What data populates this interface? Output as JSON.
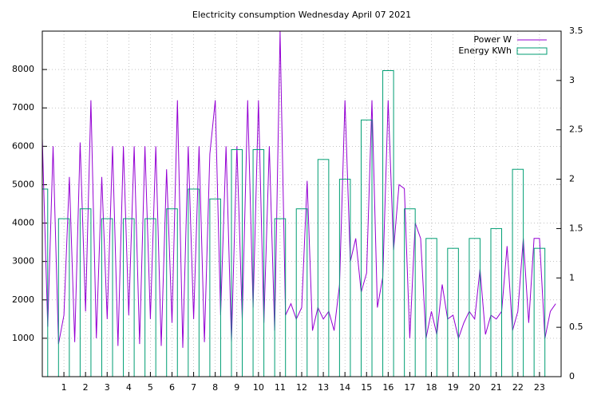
{
  "chart_data": {
    "type": "line",
    "title": "Electricity consumption Wednesday April 07 2021",
    "xlim": [
      0,
      24
    ],
    "xticks": [
      1,
      2,
      3,
      4,
      5,
      6,
      7,
      8,
      9,
      10,
      11,
      12,
      13,
      14,
      15,
      16,
      17,
      18,
      19,
      20,
      21,
      22,
      23
    ],
    "ylim": [
      0,
      9000
    ],
    "yticks": [
      1000,
      2000,
      3000,
      4000,
      5000,
      6000,
      7000,
      8000
    ],
    "y2lim": [
      0,
      3.5
    ],
    "y2ticks": [
      0,
      0.5,
      1,
      1.5,
      2,
      2.5,
      3,
      3.5
    ],
    "grid": true,
    "legend": "top-right",
    "series": [
      {
        "name": "Power W",
        "color": "#9400d3",
        "type": "line",
        "x": [
          0,
          0.25,
          0.5,
          0.75,
          1,
          1.25,
          1.5,
          1.75,
          2,
          2.25,
          2.5,
          2.75,
          3,
          3.25,
          3.5,
          3.75,
          4,
          4.25,
          4.5,
          4.75,
          5,
          5.25,
          5.5,
          5.75,
          6,
          6.25,
          6.5,
          6.75,
          7,
          7.25,
          7.5,
          7.75,
          8,
          8.25,
          8.5,
          8.75,
          9,
          9.25,
          9.5,
          9.75,
          10,
          10.25,
          10.5,
          10.75,
          11,
          11.25,
          11.5,
          11.75,
          12,
          12.25,
          12.5,
          12.75,
          13,
          13.25,
          13.5,
          13.75,
          14,
          14.25,
          14.5,
          14.75,
          15,
          15.25,
          15.5,
          15.75,
          16,
          16.25,
          16.5,
          16.75,
          17,
          17.25,
          17.5,
          17.75,
          18,
          18.25,
          18.5,
          18.75,
          19,
          19.25,
          19.5,
          19.75,
          20,
          20.25,
          20.5,
          20.75,
          21,
          21.25,
          21.5,
          21.75,
          22,
          22.25,
          22.5,
          22.75,
          23,
          23.25,
          23.5,
          23.75
        ],
        "values": [
          6200,
          1300,
          6000,
          850,
          1600,
          5200,
          900,
          6100,
          1700,
          7200,
          1000,
          5200,
          1500,
          6000,
          800,
          6000,
          1600,
          6000,
          850,
          6000,
          1500,
          6000,
          800,
          5400,
          1400,
          7200,
          750,
          6000,
          1500,
          6000,
          900,
          5800,
          7200,
          1600,
          6000,
          900,
          6000,
          1500,
          7200,
          1800,
          7200,
          1400,
          6000,
          1200,
          9000,
          1600,
          1900,
          1500,
          1800,
          5100,
          1200,
          1800,
          1500,
          1700,
          1200,
          2400,
          7200,
          3000,
          3600,
          2200,
          2700,
          7200,
          1800,
          2600,
          7200,
          3300,
          5000,
          4900,
          1000,
          4000,
          3600,
          1000,
          1700,
          1100,
          2400,
          1500,
          1600,
          1000,
          1400,
          1700,
          1500,
          2800,
          1100,
          1600,
          1500,
          1700,
          3400,
          1200,
          1700,
          3600,
          1400,
          3600,
          3600,
          1000,
          1700,
          1900
        ]
      },
      {
        "name": "Energy KWh",
        "color": "#009e73",
        "type": "boxes",
        "axis": "y2",
        "x": [
          0,
          1,
          2,
          3,
          4,
          5,
          6,
          7,
          8,
          9,
          10,
          11,
          12,
          13,
          14,
          15,
          16,
          17,
          18,
          19,
          20,
          21,
          22,
          23
        ],
        "values": [
          1.9,
          1.6,
          1.7,
          1.6,
          1.6,
          1.6,
          1.7,
          1.9,
          1.8,
          2.3,
          2.3,
          1.6,
          1.7,
          2.2,
          2.0,
          2.6,
          3.1,
          1.7,
          1.4,
          1.3,
          1.4,
          1.5,
          2.1,
          1.3
        ]
      }
    ]
  }
}
